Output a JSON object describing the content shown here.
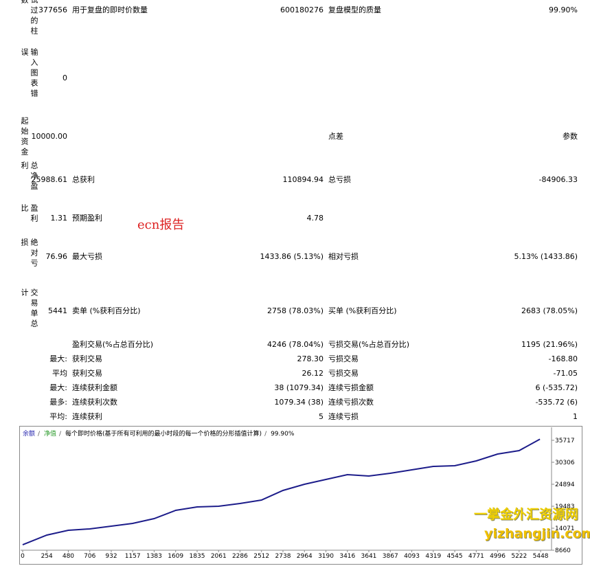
{
  "stats": [
    {
      "label": "试过的柱数",
      "value": "377656",
      "left": [
        "用于复盘的即时价数量",
        "600180276"
      ],
      "right": [
        "复盘模型的质量",
        "99.90%"
      ]
    },
    {
      "label": "输入图表错误",
      "value": "0"
    },
    {
      "label": "起始资金",
      "value": "10000.00",
      "right": [
        "点差",
        "参数"
      ]
    },
    {
      "label": "总净盈利",
      "value": "25988.61",
      "left": [
        "总获利",
        "110894.94"
      ],
      "right": [
        "总亏损",
        "-84906.33"
      ]
    },
    {
      "label": "盈利比",
      "value": "1.31",
      "left": [
        "预期盈利",
        "4.78"
      ]
    },
    {
      "label": "绝对亏损",
      "value": "76.96",
      "left": [
        "最大亏损",
        "1433.86 (5.13%)"
      ],
      "right": [
        "相对亏损",
        "5.13% (1433.86)"
      ]
    },
    {
      "label": "交易单总计",
      "value": "5441",
      "left": [
        "卖单 (%获利百分比)",
        "2758 (78.03%)"
      ],
      "right": [
        "买单 (%获利百分比)",
        "2683 (78.05%)"
      ]
    }
  ],
  "details": [
    {
      "left": [
        "盈利交易(%占总百分比)",
        "4246 (78.04%)"
      ],
      "right": [
        "亏损交易(%占总百分比)",
        "1195 (21.96%)"
      ]
    },
    {
      "prefix": "最大:",
      "left": [
        "获利交易",
        "278.30"
      ],
      "right": [
        "亏损交易",
        "-168.80"
      ]
    },
    {
      "prefix": "平均",
      "left": [
        "获利交易",
        "26.12"
      ],
      "right": [
        "亏损交易",
        "-71.05"
      ]
    },
    {
      "prefix": "最大:",
      "left": [
        "连续获利金额",
        "38 (1079.34)"
      ],
      "right": [
        "连续亏损金额",
        "6 (-535.72)"
      ]
    },
    {
      "prefix": "最多:",
      "left": [
        "连续获利次数",
        "1079.34 (38)"
      ],
      "right": [
        "连续亏损次数",
        "-535.72 (6)"
      ]
    },
    {
      "prefix": "平均:",
      "left": [
        "连续获利",
        "5"
      ],
      "right": [
        "连续亏损",
        "1"
      ]
    }
  ],
  "watermarks": [
    "ecn报告",
    "一掌金外汇资源网",
    "yizhangjin.com"
  ],
  "graph": {
    "legend": [
      "余额",
      "净值",
      "每个即时价格(基于所有可利用的最小时段的每一个价格的分形插值计算)",
      "99.90%"
    ],
    "color": "#1c1c8a",
    "x": [
      0,
      254,
      480,
      706,
      932,
      1157,
      1383,
      1609,
      1835,
      2061,
      2286,
      2512,
      2738,
      2964,
      3190,
      3416,
      3641,
      3867,
      4093,
      4319,
      4545,
      4771,
      4996,
      5222,
      5441
    ],
    "values": [
      10000,
      12380,
      13565,
      13900,
      14580,
      15250,
      16440,
      18470,
      19310,
      19480,
      20160,
      21000,
      23370,
      24890,
      26080,
      27260,
      26920,
      27600,
      28450,
      29290,
      29460,
      30640,
      32340,
      33180,
      35989
    ],
    "xlim": [
      0,
      5563
    ],
    "ylim": [
      8660,
      36900
    ],
    "xticks": [
      0,
      254,
      480,
      706,
      932,
      1157,
      1383,
      1609,
      1835,
      2061,
      2286,
      2512,
      2738,
      2964,
      3190,
      3416,
      3641,
      3867,
      4093,
      4319,
      4545,
      4771,
      4996,
      5222,
      5448
    ],
    "yticks": [
      8660,
      14071,
      19483,
      24894,
      30306,
      35717
    ]
  }
}
